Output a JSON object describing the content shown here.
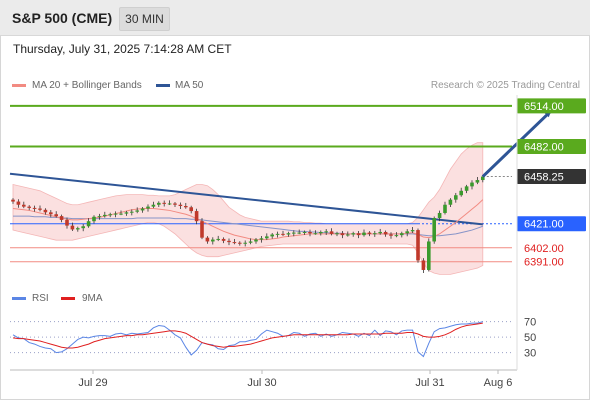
{
  "header": {
    "symbol": "S&P 500 (CME)",
    "timeframe": "30 MIN"
  },
  "timestamp": "Thursday, July 31, 2025 7:14:28 AM CET",
  "legend": [
    {
      "label": "MA 20 + Bollinger Bands",
      "color": "#f28b82"
    },
    {
      "label": "MA 50",
      "color": "#2e5596"
    }
  ],
  "copyright": "Research © 2025 Trading Central",
  "rsi_legend": [
    {
      "label": "RSI",
      "color": "#5b86e5"
    },
    {
      "label": "9MA",
      "color": "#e02020"
    }
  ],
  "chart_data": [
    {
      "type": "candlestick",
      "title": "S&P 500 (CME) 30 MIN",
      "y_range": [
        6375,
        6525
      ],
      "x_ticks": [
        "Jul 29",
        "Jul 30",
        "Jul 31",
        "Aug 6"
      ],
      "price_levels": [
        {
          "label": "6514.00",
          "value": 6514.0,
          "role": "target",
          "color": "#5aaa1e"
        },
        {
          "label": "6482.00",
          "value": 6482.0,
          "role": "target",
          "color": "#5aaa1e"
        },
        {
          "label": "6458.25",
          "value": 6458.25,
          "role": "last",
          "color": "#333333"
        },
        {
          "label": "6421.00",
          "value": 6421.0,
          "role": "pivot",
          "color": "#2962ff"
        },
        {
          "label": "6402.00",
          "value": 6402.0,
          "role": "support",
          "color": "#e02020"
        },
        {
          "label": "6391.00",
          "value": 6391.0,
          "role": "support",
          "color": "#e02020"
        }
      ],
      "trendline": {
        "from": [
          0,
          6460.5
        ],
        "to": [
          87,
          6420.5
        ]
      },
      "series": [
        {
          "name": "Price",
          "values": [
            6438.5,
            6436,
            6434.5,
            6433.5,
            6433,
            6432,
            6430,
            6428.5,
            6427,
            6424,
            6419.5,
            6416.5,
            6417.5,
            6419,
            6423,
            6426.5,
            6427,
            6428,
            6428.5,
            6429,
            6429,
            6430,
            6430.5,
            6431.5,
            6433,
            6434.5,
            6436,
            6437.5,
            6437,
            6437,
            6436,
            6435,
            6434,
            6431,
            6423,
            6410,
            6407,
            6408.5,
            6409,
            6407.5,
            6406.5,
            6406,
            6405.5,
            6406,
            6407,
            6408.5,
            6409.5,
            6411,
            6412.5,
            6413,
            6412.5,
            6413.5,
            6414,
            6414,
            6414.5,
            6413.5,
            6413.5,
            6414.5,
            6415,
            6413,
            6413.5,
            6412,
            6412.5,
            6413.5,
            6412,
            6414,
            6413,
            6413.5,
            6414.5,
            6412.5,
            6411.5,
            6412,
            6413.5,
            6415,
            6416,
            6392,
            6384.5,
            6407,
            6425.5,
            6429.5,
            6436,
            6440,
            6443.5,
            6447,
            6450.5,
            6453.5,
            6455.5,
            6458.25
          ]
        },
        {
          "name": "MA 20",
          "values": [
            6433,
            6432.5,
            6432,
            6431.5,
            6430.5,
            6429.5,
            6428.5,
            6427.5,
            6426.5,
            6425.5,
            6424.5,
            6424,
            6424,
            6424.5,
            6425,
            6425.5,
            6426,
            6427,
            6428,
            6429,
            6430,
            6431,
            6432,
            6432.5,
            6433,
            6433,
            6433,
            6432.5,
            6432,
            6431.5,
            6430.5,
            6429.5,
            6428.5,
            6427,
            6425,
            6423,
            6421,
            6419,
            6417,
            6415,
            6413.5,
            6412,
            6411,
            6410,
            6409,
            6408.5,
            6408.5,
            6408.5,
            6409,
            6409.5,
            6410.5,
            6411,
            6411.5,
            6412,
            6412.5,
            6413,
            6413,
            6413,
            6413,
            6413,
            6413,
            6413,
            6413,
            6413,
            6413,
            6413,
            6413,
            6413,
            6413,
            6413,
            6413,
            6413,
            6413,
            6413.5,
            6414,
            6412.5,
            6410.5,
            6410,
            6411,
            6413,
            6416,
            6419,
            6422,
            6425.5,
            6429,
            6432.5,
            6436,
            6440
          ]
        },
        {
          "name": "MA 50",
          "values": [
            6427,
            6427,
            6427,
            6427,
            6426.5,
            6426.5,
            6426.5,
            6426,
            6426,
            6425.5,
            6425.5,
            6425,
            6425,
            6425,
            6425,
            6425,
            6425,
            6425,
            6425,
            6425,
            6425,
            6425,
            6425,
            6425.5,
            6425.5,
            6425.5,
            6425.5,
            6425.5,
            6425.5,
            6425.5,
            6425,
            6425,
            6425,
            6424.5,
            6424.5,
            6424,
            6423.5,
            6423,
            6422.5,
            6422,
            6421.5,
            6421,
            6420.5,
            6420,
            6419.5,
            6419,
            6418.5,
            6418,
            6417.5,
            6417,
            6416.5,
            6416,
            6415.5,
            6415,
            6415,
            6414.5,
            6414.5,
            6414,
            6414,
            6413.5,
            6413.5,
            6413.5,
            6413,
            6413,
            6413,
            6413,
            6413,
            6413,
            6413,
            6413,
            6413,
            6413,
            6413,
            6413,
            6413,
            6412.5,
            6412,
            6411.5,
            6411.5,
            6411.5,
            6412,
            6412.5,
            6413,
            6414,
            6415,
            6416,
            6417.5,
            6419
          ]
        }
      ],
      "bollinger": {
        "upper": [
          6452,
          6451,
          6450,
          6449,
          6448,
          6447,
          6445,
          6443,
          6441,
          6439,
          6437,
          6436,
          6436,
          6437,
          6438,
          6439,
          6440,
          6441,
          6442,
          6443,
          6443.5,
          6444,
          6444,
          6444,
          6444,
          6443.5,
          6443.5,
          6443,
          6443,
          6443,
          6444,
          6446,
          6448,
          6450,
          6452,
          6452,
          6451,
          6448,
          6444,
          6439,
          6434,
          6431,
          6428,
          6426,
          6425,
          6424,
          6423,
          6423,
          6423,
          6423,
          6423,
          6423,
          6422.5,
          6422.5,
          6422,
          6422,
          6421.5,
          6421.5,
          6421,
          6421,
          6421,
          6421,
          6421,
          6421,
          6421,
          6421,
          6421,
          6421,
          6421,
          6421,
          6421,
          6421,
          6421,
          6421,
          6422,
          6426,
          6432,
          6438,
          6442,
          6448,
          6456,
          6464,
          6470,
          6476,
          6480,
          6483,
          6485,
          6485
        ],
        "lower": [
          6416,
          6415,
          6414,
          6413,
          6412,
          6411,
          6410,
          6409,
          6408,
          6408,
          6408,
          6408,
          6409,
          6410,
          6411,
          6412,
          6413,
          6414,
          6415,
          6416,
          6417,
          6418,
          6419,
          6420,
          6421,
          6422,
          6422,
          6421,
          6419,
          6416,
          6413,
          6409,
          6405,
          6401,
          6398,
          6396,
          6395,
          6395,
          6395,
          6396,
          6397,
          6398,
          6399,
          6400,
          6401,
          6402,
          6403,
          6403.5,
          6404,
          6404.5,
          6405,
          6405,
          6405,
          6405,
          6405,
          6405,
          6405,
          6405,
          6405,
          6405,
          6405,
          6405,
          6405,
          6405,
          6405,
          6405,
          6405,
          6405,
          6405,
          6405,
          6405,
          6405,
          6405,
          6405,
          6404,
          6398,
          6390,
          6384,
          6382,
          6381,
          6381,
          6381,
          6382,
          6383,
          6384,
          6385,
          6386,
          6388
        ]
      },
      "projection": {
        "from": [
          87,
          6458.25
        ],
        "to": [
          100,
          6514.0
        ]
      }
    },
    {
      "type": "line",
      "title": "RSI",
      "ylim": [
        5,
        85
      ],
      "y_ticks": [
        70,
        50,
        30
      ],
      "series": [
        {
          "name": "RSI",
          "values": [
            53,
            49,
            48,
            43,
            41,
            38,
            36,
            35,
            30,
            31,
            35,
            41,
            47,
            50,
            49,
            51,
            52,
            52,
            51,
            54,
            55,
            53,
            55,
            54,
            55,
            56,
            62,
            65,
            64,
            59,
            53,
            49,
            37,
            27,
            33,
            43,
            41,
            40,
            35,
            34,
            39,
            40,
            44,
            44,
            46,
            47,
            54,
            59,
            57,
            55,
            51,
            52,
            56,
            55,
            51,
            54,
            55,
            51,
            54,
            51,
            53,
            56,
            55,
            54,
            51,
            55,
            52,
            59,
            52,
            58,
            57,
            53,
            58,
            59,
            59,
            31,
            25,
            42,
            57,
            61,
            62,
            64,
            66,
            67,
            67,
            68,
            68,
            70
          ]
        },
        {
          "name": "9MA",
          "values": [
            49,
            48,
            48,
            47,
            46,
            45,
            43,
            41,
            39,
            37,
            36,
            36,
            37,
            39,
            41,
            44,
            46,
            48,
            49,
            50,
            51,
            52,
            52,
            53,
            53,
            54,
            55,
            56,
            57,
            58,
            58,
            57,
            55,
            51,
            47,
            43,
            41,
            39,
            38,
            37,
            38,
            38,
            39,
            40,
            41,
            43,
            45,
            47,
            49,
            50,
            51,
            52,
            53,
            53,
            53,
            53,
            53,
            53,
            53,
            53,
            53,
            53,
            53,
            54,
            54,
            54,
            54,
            54,
            54,
            55,
            55,
            55,
            55,
            56,
            56,
            54,
            51,
            50,
            50,
            51,
            53,
            56,
            60,
            63,
            65,
            66,
            67,
            68
          ]
        }
      ],
      "reference_lines": [
        70,
        50,
        30
      ]
    }
  ]
}
